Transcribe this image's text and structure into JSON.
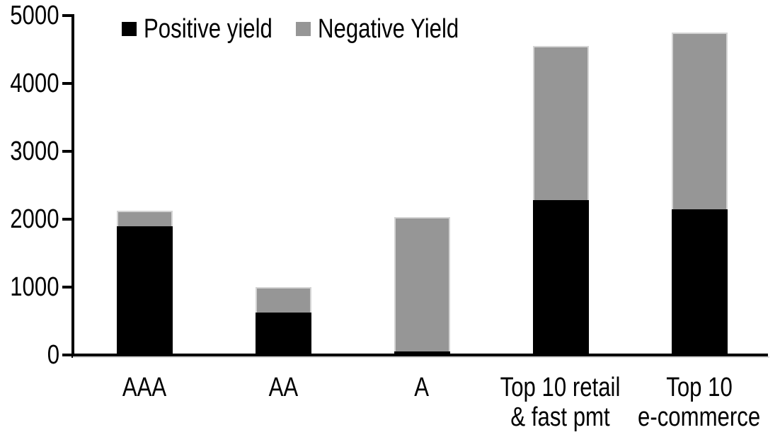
{
  "chart_data": {
    "type": "bar",
    "stacked": true,
    "title": "",
    "xlabel": "",
    "ylabel": "",
    "categories": [
      "AAA",
      "AA",
      "A",
      "Top 10 retail & fast pmt",
      "Top 10 e-commerce"
    ],
    "category_label_lines": [
      [
        "AAA"
      ],
      [
        "AA"
      ],
      [
        "A"
      ],
      [
        "Top 10 retail",
        "& fast pmt"
      ],
      [
        "Top 10",
        "e-commerce"
      ]
    ],
    "series": [
      {
        "name": "Positive yield",
        "color": "#000000",
        "values": [
          1900,
          620,
          50,
          2280,
          2150
        ]
      },
      {
        "name": "Negative Yield",
        "color": "#969696",
        "values": [
          220,
          380,
          1980,
          2270,
          2600
        ]
      }
    ],
    "ylim": [
      0,
      5000
    ],
    "yticks": [
      0,
      1000,
      2000,
      3000,
      4000,
      5000
    ],
    "ytick_labels": [
      "0",
      "1000",
      "2000",
      "3000",
      "4000",
      "5000"
    ],
    "grid": false,
    "legend_position": "top"
  }
}
